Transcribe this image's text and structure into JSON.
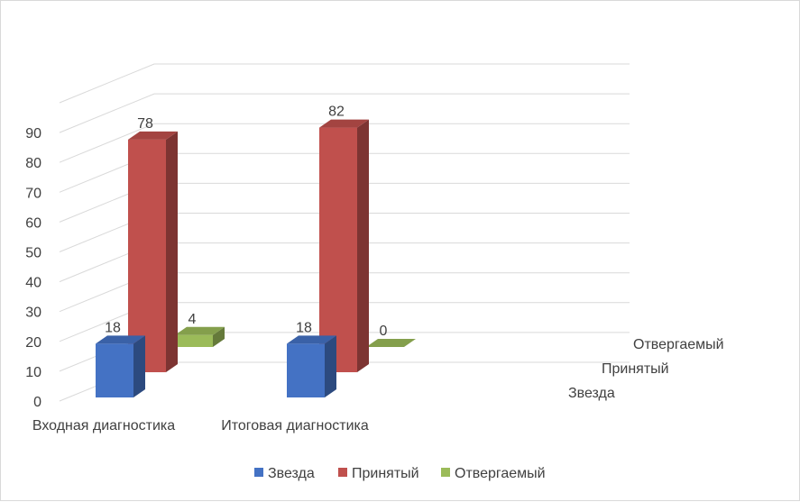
{
  "chart_data": {
    "type": "bar",
    "categories": [
      "Входная диагностика",
      "Итоговая диагностика"
    ],
    "series": [
      {
        "name": "Звезда",
        "values": [
          18,
          18
        ],
        "color": "#4472c4"
      },
      {
        "name": "Принятый",
        "values": [
          78,
          82
        ],
        "color": "#c0504d"
      },
      {
        "name": "Отвергаемый",
        "values": [
          4,
          0
        ],
        "color": "#9bbb59"
      }
    ],
    "yticks": [
      0,
      10,
      20,
      30,
      40,
      50,
      60,
      70,
      80,
      90
    ],
    "ylim": [
      0,
      100
    ],
    "depth_labels": [
      "Отвергаемый",
      "Принятый",
      "Звезда"
    ],
    "legend": "bottom",
    "grid": true
  }
}
